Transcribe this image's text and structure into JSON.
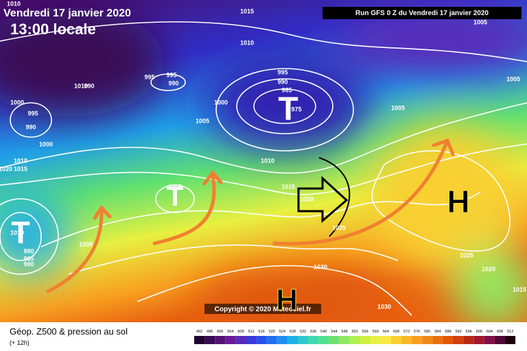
{
  "header": {
    "title": "Vendredi 17 janvier 2020",
    "time": "13:00 locale",
    "run": "Run GFS 0 Z du Vendredi 17 janvier 2020"
  },
  "footer": {
    "title": "Géop. Z500 & pression au sol",
    "subtitle": "(+ 12h)",
    "copyright": "Copyright © 2020 Meteociel.fr"
  },
  "legend": {
    "values": [
      492,
      496,
      500,
      504,
      508,
      512,
      516,
      520,
      524,
      528,
      532,
      536,
      540,
      544,
      548,
      552,
      556,
      560,
      564,
      568,
      572,
      576,
      580,
      584,
      588,
      592,
      596,
      600,
      604,
      608,
      612
    ],
    "colors": [
      "#1e0630",
      "#3a0c55",
      "#551276",
      "#6a1a96",
      "#5a2ab8",
      "#3a3ad8",
      "#2850e8",
      "#2070f0",
      "#2090f0",
      "#20b0e8",
      "#30c8d0",
      "#40d8b0",
      "#50e090",
      "#70e070",
      "#90e860",
      "#b0f050",
      "#d0f040",
      "#e8f040",
      "#f8e840",
      "#f8d030",
      "#f8b828",
      "#f8a020",
      "#f08818",
      "#e87010",
      "#e05808",
      "#d04010",
      "#b82818",
      "#a01830",
      "#801048",
      "#500838",
      "#200010"
    ]
  },
  "map": {
    "labels": [
      "1015",
      "1010",
      "1010",
      "995",
      "990",
      "995",
      "990",
      "1010",
      "1000",
      "995",
      "990",
      "1000",
      "1020",
      "1015",
      "1010",
      "1005",
      "1000",
      "1005",
      "1010",
      "1015",
      "1020",
      "1025",
      "1030",
      "1030",
      "1025",
      "1020",
      "1015",
      "995",
      "990",
      "985",
      "975",
      "1005",
      "1005",
      "980",
      "985",
      "990",
      "1005",
      "1005",
      "1010"
    ],
    "centers": [
      "T",
      "T",
      "T",
      "H",
      "H"
    ]
  }
}
